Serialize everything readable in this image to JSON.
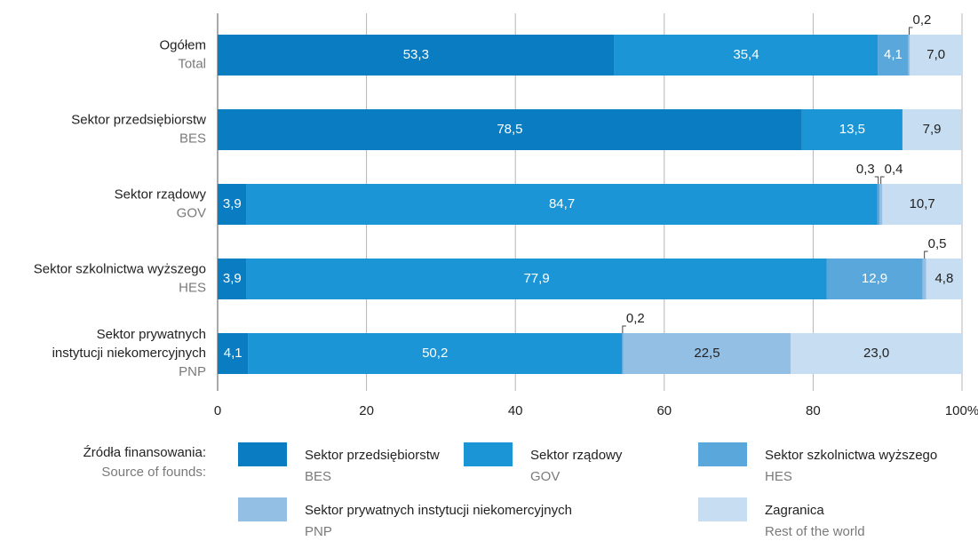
{
  "chart_data": {
    "type": "stacked-bar-horizontal",
    "categories": [
      [
        "Ogółem",
        "Total"
      ],
      [
        "Sektor przedsiębiorstw",
        "BES"
      ],
      [
        "Sektor rządowy",
        "GOV"
      ],
      [
        "Sektor szkolnictwa wyższego",
        "HES"
      ],
      [
        "Sektor prywatnych",
        "instytucji niekomercyjnych",
        "PNP"
      ]
    ],
    "series": [
      {
        "name": "Sektor przedsiębiorstw",
        "code": "BES",
        "color": "#0a7cc2",
        "values": [
          53.3,
          78.5,
          3.9,
          3.9,
          4.1
        ],
        "value_labels": [
          "53,3",
          "78,5",
          "3,9",
          "3,9",
          "4,1"
        ]
      },
      {
        "name": "Sektor rządowy",
        "code": "GOV",
        "color": "#1b95d5",
        "values": [
          35.4,
          13.5,
          84.7,
          77.9,
          50.2
        ],
        "value_labels": [
          "35,4",
          "13,5",
          "84,7",
          "77,9",
          "50,2"
        ]
      },
      {
        "name": "Sektor szkolnictwa wyższego",
        "code": "HES",
        "color": "#5aa7dc",
        "values": [
          4.1,
          null,
          0.3,
          12.9,
          0.2
        ],
        "value_labels": [
          "4,1",
          null,
          "0,3",
          "12,9",
          "0,2"
        ]
      },
      {
        "name": "Sektor prywatnych instytucji niekomercyjnych",
        "code": "PNP",
        "color": "#94bfe5",
        "values": [
          0.2,
          null,
          0.4,
          0.5,
          22.5
        ],
        "value_labels": [
          "0,2",
          null,
          "0,4",
          "0,5",
          "22,5"
        ]
      },
      {
        "name": "Zagranica",
        "code": "Rest of the world",
        "color": "#c6ddf2",
        "values": [
          7.0,
          7.9,
          10.7,
          4.8,
          23.0
        ],
        "value_labels": [
          "7,0",
          "7,9",
          "10,7",
          "4,8",
          "23,0"
        ]
      }
    ],
    "xlim": [
      0,
      100
    ],
    "xticks": [
      0,
      20,
      40,
      60,
      80,
      {
        "value": 100,
        "label": "100%"
      }
    ],
    "grid": true,
    "legend_title": [
      "Źródła finansowania:",
      "Source of founds:"
    ]
  }
}
